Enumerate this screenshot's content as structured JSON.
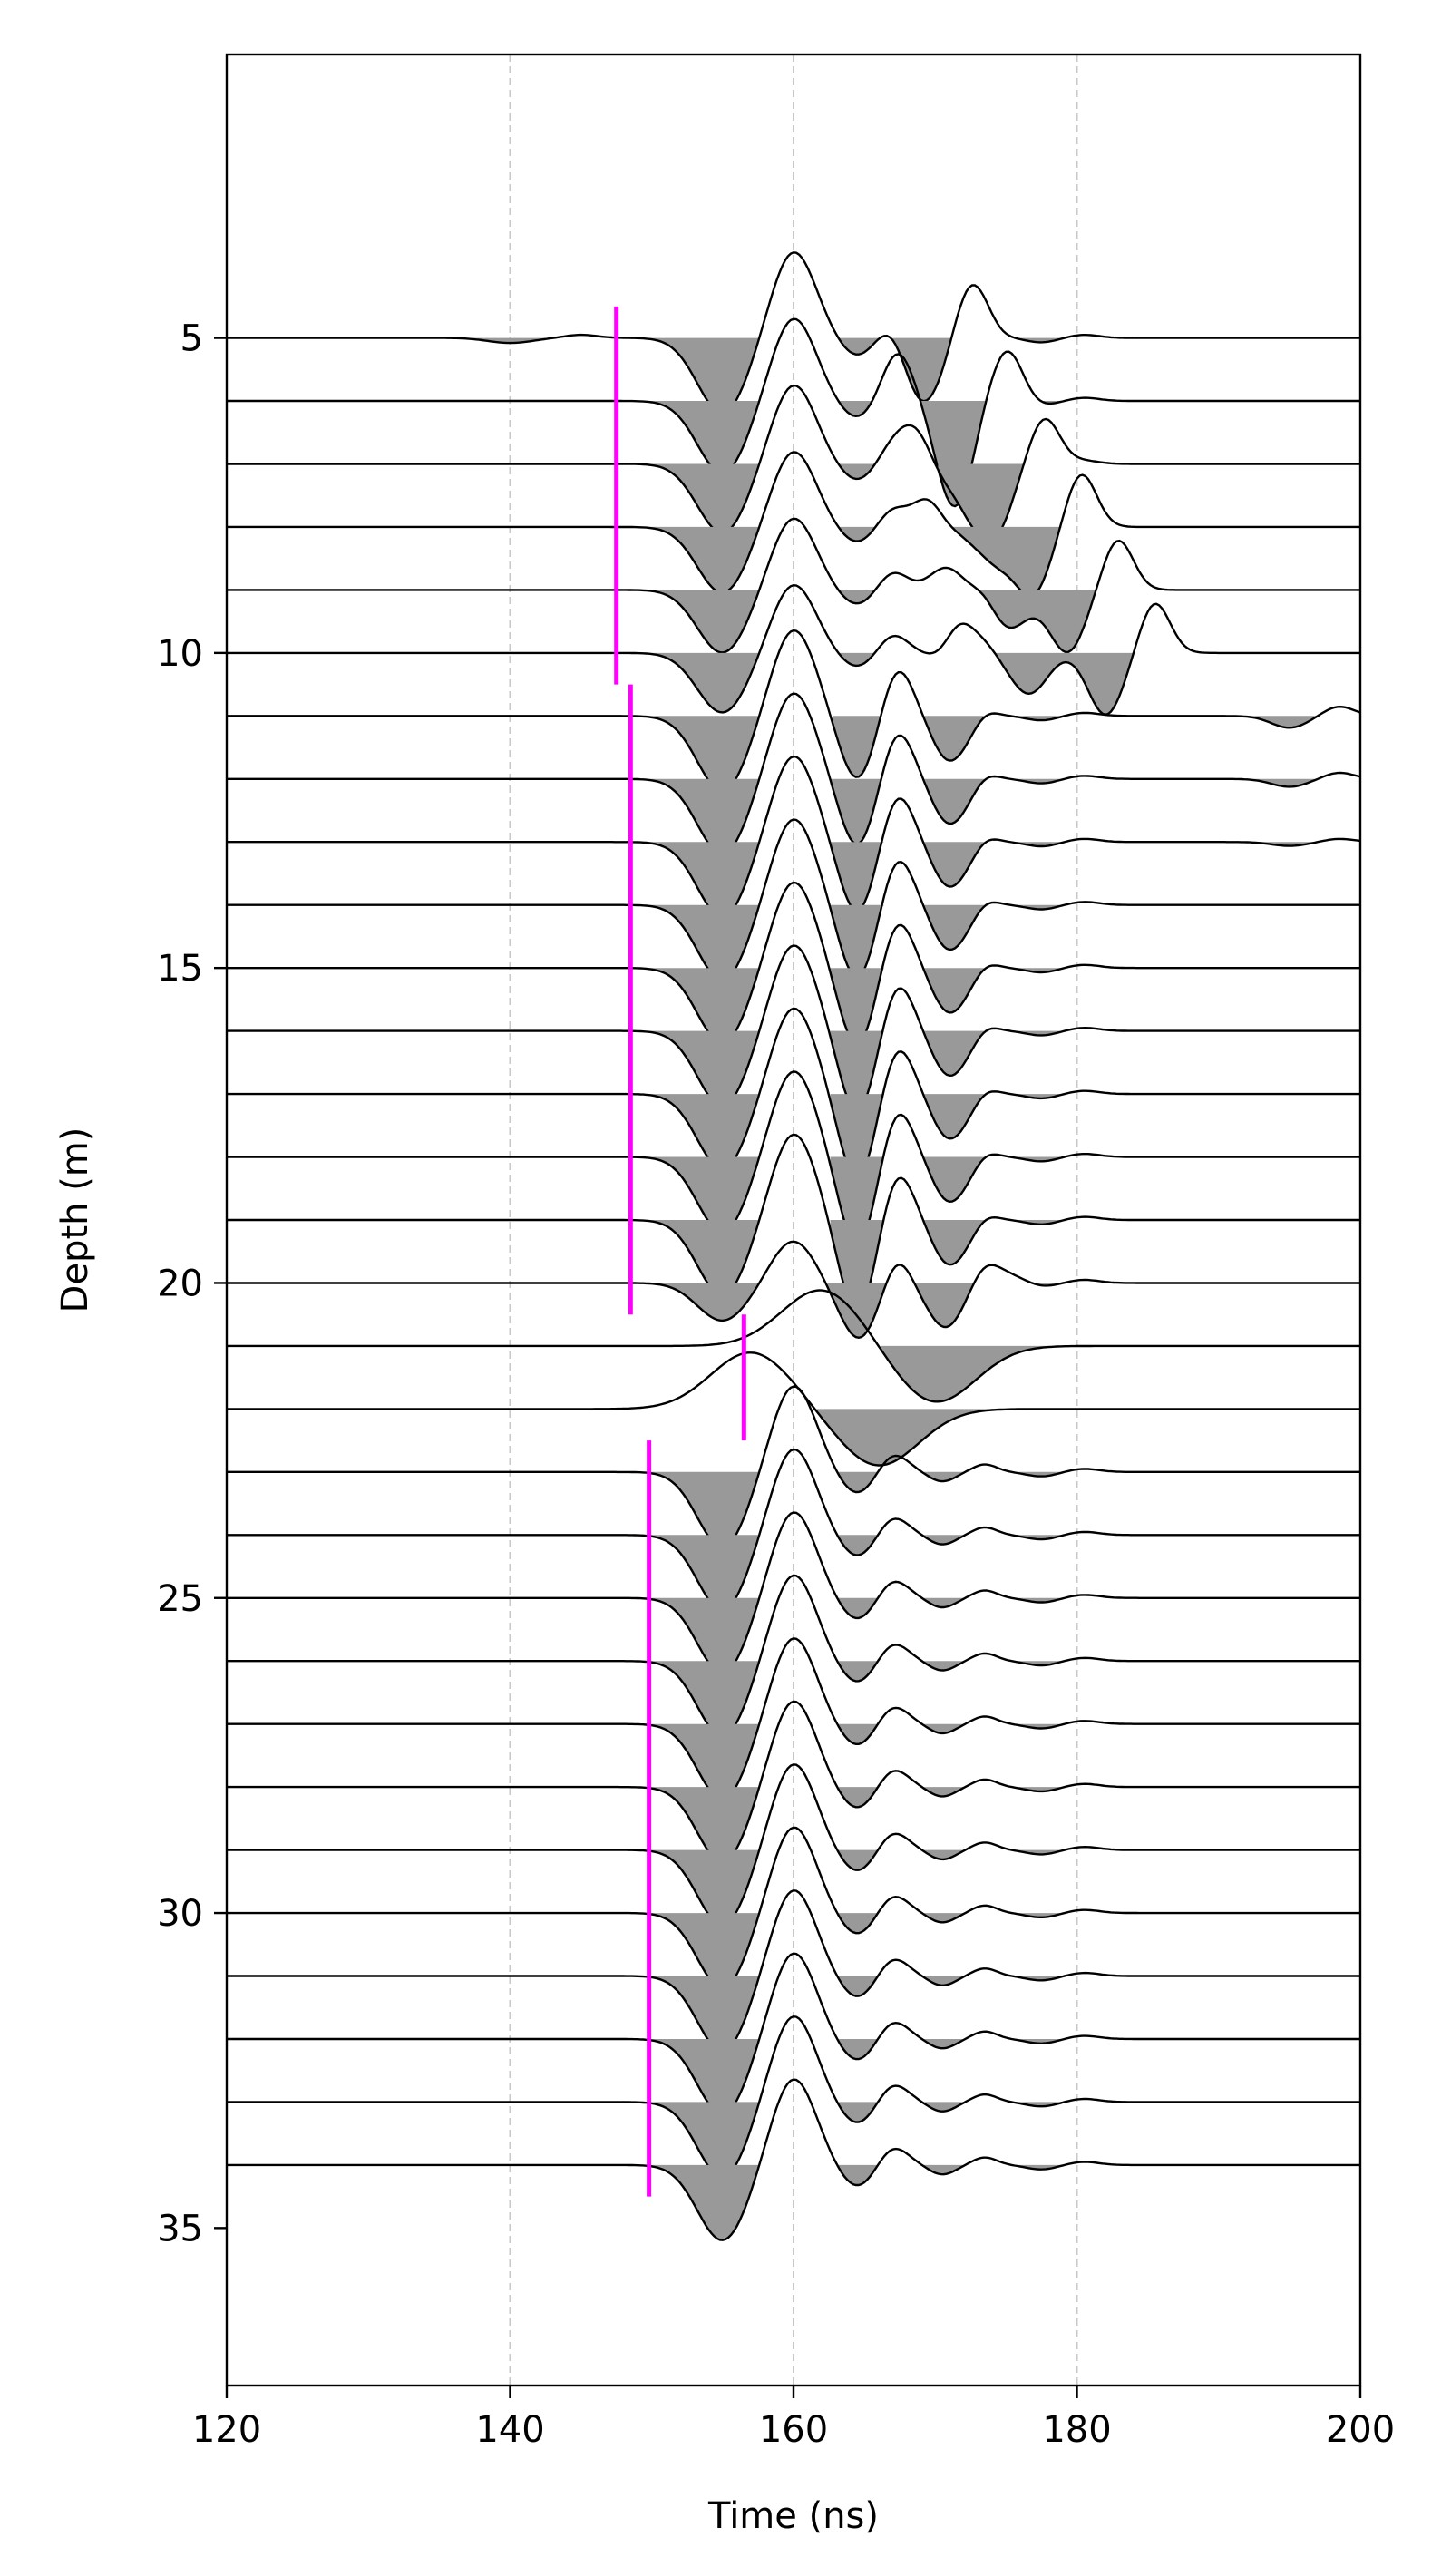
{
  "chart_data": {
    "type": "line",
    "title": "",
    "xlabel": "Time (ns)",
    "ylabel": "Depth (m)",
    "xlim": [
      120,
      200
    ],
    "ylim": [
      37.5,
      0.5
    ],
    "y_inverted": true,
    "xticks": [
      120,
      140,
      160,
      180,
      200
    ],
    "yticks": [
      5,
      10,
      15,
      20,
      25,
      30,
      35
    ],
    "grid": "vertical dashed at major x ticks",
    "fill_negative": true,
    "colors": {
      "trace": "#000000",
      "fill": "#999999",
      "pick": "#ff00ff",
      "grid": "#c8c8c8"
    },
    "trace_depths": [
      5,
      6,
      7,
      8,
      9,
      10,
      11,
      12,
      13,
      14,
      15,
      16,
      17,
      18,
      19,
      20,
      21,
      22,
      23,
      24,
      25,
      26,
      27,
      28,
      29,
      30,
      31,
      32,
      33,
      34
    ],
    "picks": [
      {
        "time": 147.5,
        "depth_from": 4.5,
        "depth_to": 10.5
      },
      {
        "time": 148.5,
        "depth_from": 10.5,
        "depth_to": 20.5
      },
      {
        "time": 156.5,
        "depth_from": 20.5,
        "depth_to": 22.5
      },
      {
        "time": 149.8,
        "depth_from": 22.5,
        "depth_to": 34.5
      }
    ]
  }
}
